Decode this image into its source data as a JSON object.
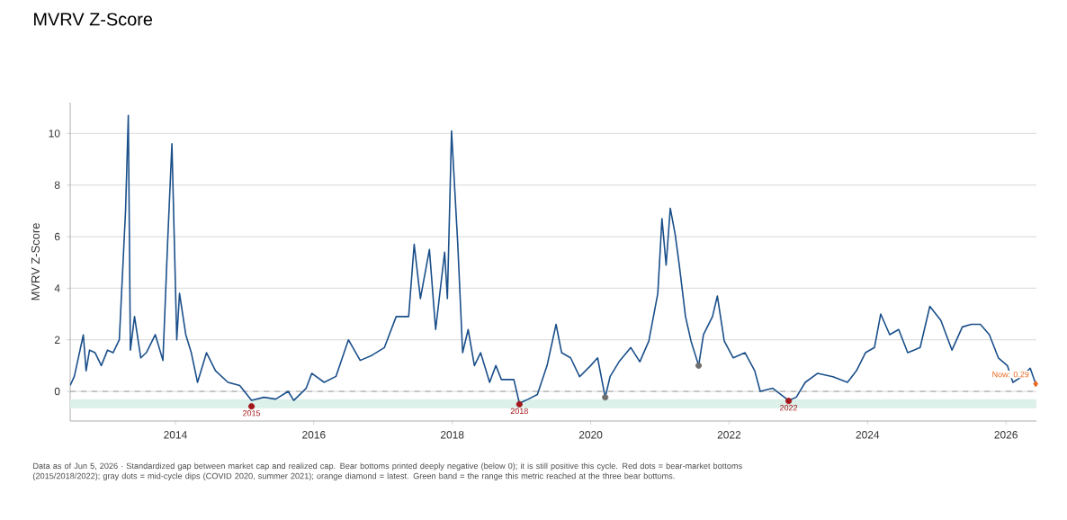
{
  "chart_data": {
    "type": "line",
    "title": "MVRV Z-Score",
    "ylabel": "MVRV Z-Score",
    "xlim": [
      2012.48,
      2026.44
    ],
    "ylim": [
      -1.15,
      11.2
    ],
    "xticks": [
      2014,
      2016,
      2018,
      2020,
      2022,
      2024,
      2026
    ],
    "yticks": [
      0,
      2,
      4,
      6,
      8,
      10
    ],
    "grid": "y",
    "series": [
      {
        "color": "#1a4f8a",
        "marker": "none",
        "line_style": "solid",
        "x": [
          2012.48,
          2012.54,
          2012.67,
          2012.71,
          2012.76,
          2012.84,
          2012.93,
          2013.02,
          2013.1,
          2013.19,
          2013.28,
          2013.32,
          2013.35,
          2013.41,
          2013.5,
          2013.58,
          2013.71,
          2013.82,
          2013.89,
          2013.95,
          2014.02,
          2014.06,
          2014.15,
          2014.23,
          2014.32,
          2014.45,
          2014.58,
          2014.76,
          2014.93,
          2015.1,
          2015.28,
          2015.45,
          2015.63,
          2015.71,
          2015.89,
          2015.97,
          2016.15,
          2016.32,
          2016.5,
          2016.67,
          2016.84,
          2017.02,
          2017.19,
          2017.37,
          2017.45,
          2017.54,
          2017.67,
          2017.76,
          2017.89,
          2017.93,
          2017.99,
          2018.08,
          2018.15,
          2018.23,
          2018.32,
          2018.41,
          2018.54,
          2018.63,
          2018.71,
          2018.89,
          2018.97,
          2019.1,
          2019.23,
          2019.37,
          2019.5,
          2019.58,
          2019.71,
          2019.84,
          2020.0,
          2020.1,
          2020.21,
          2020.28,
          2020.41,
          2020.58,
          2020.71,
          2020.84,
          2020.97,
          2021.03,
          2021.09,
          2021.15,
          2021.22,
          2021.28,
          2021.37,
          2021.45,
          2021.56,
          2021.63,
          2021.76,
          2021.83,
          2021.93,
          2022.06,
          2022.23,
          2022.37,
          2022.45,
          2022.63,
          2022.8,
          2022.86,
          2022.97,
          2023.1,
          2023.28,
          2023.5,
          2023.71,
          2023.84,
          2023.97,
          2024.1,
          2024.19,
          2024.32,
          2024.45,
          2024.58,
          2024.76,
          2024.9,
          2025.06,
          2025.22,
          2025.37,
          2025.5,
          2025.63,
          2025.76,
          2025.89,
          2026.02,
          2026.1,
          2026.23,
          2026.35,
          2026.43
        ],
        "values": [
          0.23,
          0.58,
          2.19,
          0.8,
          1.6,
          1.5,
          1.0,
          1.6,
          1.5,
          2.0,
          7.0,
          10.7,
          1.6,
          2.9,
          1.3,
          1.5,
          2.2,
          1.2,
          5.9,
          9.6,
          2.0,
          3.8,
          2.2,
          1.5,
          0.35,
          1.5,
          0.8,
          0.35,
          0.23,
          -0.35,
          -0.23,
          -0.3,
          0.0,
          -0.35,
          0.12,
          0.7,
          0.35,
          0.58,
          2.0,
          1.2,
          1.4,
          1.7,
          2.9,
          2.9,
          5.7,
          3.6,
          5.5,
          2.4,
          5.4,
          3.6,
          10.1,
          5.7,
          1.5,
          2.4,
          1.0,
          1.5,
          0.35,
          1.0,
          0.46,
          0.46,
          -0.46,
          -0.3,
          -0.12,
          1.0,
          2.6,
          1.5,
          1.3,
          0.57,
          1.0,
          1.3,
          -0.23,
          0.57,
          1.15,
          1.7,
          1.15,
          1.95,
          3.8,
          6.7,
          4.9,
          7.1,
          6.1,
          4.9,
          2.9,
          1.95,
          1.0,
          2.2,
          2.9,
          3.7,
          1.95,
          1.3,
          1.5,
          0.8,
          0.0,
          0.12,
          -0.23,
          -0.35,
          -0.23,
          0.35,
          0.7,
          0.57,
          0.35,
          0.8,
          1.5,
          1.7,
          3.0,
          2.2,
          2.4,
          1.5,
          1.7,
          3.3,
          2.75,
          1.6,
          2.5,
          2.6,
          2.6,
          2.2,
          1.3,
          1.0,
          0.35,
          0.57,
          0.9,
          0.29
        ]
      },
      {
        "type": "scatter",
        "color": "#a3161a",
        "marker": "circle",
        "x": [
          2015.1,
          2018.97,
          2022.86
        ],
        "values": [
          -0.58,
          -0.5,
          -0.37
        ]
      },
      {
        "type": "scatter",
        "color": "#6e6e6e",
        "marker": "circle",
        "x": [
          2020.21,
          2021.56
        ],
        "values": [
          -0.23,
          1.0
        ]
      },
      {
        "type": "scatter",
        "color": "#e8671c",
        "marker": "diamond",
        "x": [
          2026.43
        ],
        "values": [
          0.29
        ]
      }
    ],
    "ref_lines": [
      {
        "axis": "y",
        "value": 0,
        "color": "#a0a0a0",
        "line_style": "dashed"
      }
    ],
    "bands": [
      {
        "axis": "y",
        "from": -0.65,
        "to": -0.3,
        "color": "#dcf1ea"
      }
    ],
    "annotations": [
      {
        "text": "2015",
        "x": 2015.1,
        "y": -0.58
      },
      {
        "text": "2018",
        "x": 2018.97,
        "y": -0.5
      },
      {
        "text": "2022",
        "x": 2022.86,
        "y": -0.37
      },
      {
        "text": "Now: 0.29",
        "x": 2026.43,
        "y": 0.29
      },
      "Data as of Jun 5, 2026 · Standardized gap between market cap and realized cap. Bear bottoms printed deeply negative (below 0); it is still positive this cycle. Red dots = bear-market bottoms (2015/2018/2022); gray dots = mid-cycle dips (COVID 2020, summer 2021); orange diamond = latest. Green band = the range this metric reached at the three bear bottoms."
    ]
  }
}
